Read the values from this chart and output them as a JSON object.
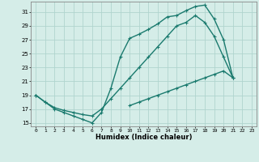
{
  "xlabel": "Humidex (Indice chaleur)",
  "background_color": "#d5ede8",
  "grid_color": "#b0d4ce",
  "line_color": "#1a7a6e",
  "line1_x": [
    0,
    1,
    2,
    3,
    4,
    5,
    6,
    7,
    8,
    9,
    10,
    11,
    12,
    13,
    14,
    15,
    16,
    17,
    18,
    19,
    20,
    21
  ],
  "line1_y": [
    19,
    18,
    17,
    16.5,
    16.0,
    15.5,
    15,
    16.5,
    20.0,
    24.5,
    27.2,
    27.8,
    28.5,
    29.3,
    30.3,
    30.5,
    31.2,
    31.8,
    32.0,
    30.0,
    27.0,
    21.5
  ],
  "line2_x": [
    0,
    1,
    2,
    3,
    4,
    5,
    6,
    7,
    8,
    9,
    10,
    11,
    12,
    13,
    14,
    15,
    16,
    17,
    18,
    19,
    20,
    21,
    22,
    23
  ],
  "line2_y": [
    19,
    18,
    17.2,
    16.8,
    16.5,
    16.2,
    16.0,
    17.0,
    18.5,
    20.0,
    21.5,
    23.0,
    24.5,
    26.0,
    27.5,
    29.0,
    29.5,
    30.5,
    29.5,
    27.5,
    24.5,
    21.5,
    null,
    null
  ],
  "line3_x": [
    0,
    1,
    2,
    3,
    4,
    5,
    6,
    7,
    8,
    9,
    10,
    11,
    12,
    13,
    14,
    15,
    16,
    17,
    18,
    19,
    20,
    21,
    22,
    23
  ],
  "line3_y": [
    null,
    null,
    null,
    null,
    null,
    null,
    null,
    null,
    null,
    null,
    17.5,
    18.0,
    18.5,
    19.0,
    19.5,
    20.0,
    20.5,
    21.0,
    21.5,
    22.0,
    22.5,
    21.5,
    null,
    null
  ],
  "ylim": [
    14.5,
    32.5
  ],
  "xlim": [
    -0.5,
    23.5
  ],
  "yticks": [
    15,
    17,
    19,
    21,
    23,
    25,
    27,
    29,
    31
  ],
  "xticks": [
    0,
    1,
    2,
    3,
    4,
    5,
    6,
    7,
    8,
    9,
    10,
    11,
    12,
    13,
    14,
    15,
    16,
    17,
    18,
    19,
    20,
    21,
    22,
    23
  ],
  "linewidth": 1.0,
  "markersize": 3.0
}
